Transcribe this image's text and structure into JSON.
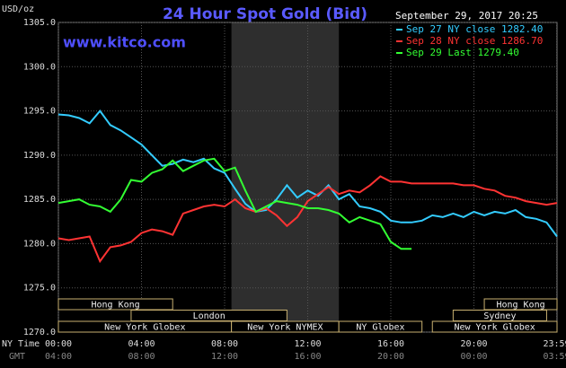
{
  "chart_data": {
    "type": "line",
    "title": "24 Hour Spot Gold (Bid)",
    "y_label": "USD/oz",
    "watermark": "www.kitco.com",
    "timestamp": "September 29, 2017 20:25",
    "x_axis_labels": [
      "NY Time",
      "GMT"
    ],
    "x": [
      0,
      0.5,
      1,
      1.5,
      2,
      2.5,
      3,
      3.5,
      4,
      4.5,
      5,
      5.5,
      6,
      6.5,
      7,
      7.5,
      8,
      8.5,
      9,
      9.5,
      10,
      10.5,
      11,
      11.5,
      12,
      12.5,
      13,
      13.5,
      14,
      14.5,
      15,
      15.5,
      16,
      16.5,
      17,
      17.5,
      18,
      18.5,
      19,
      19.5,
      20,
      20.5,
      21,
      21.5,
      22,
      22.5,
      23,
      23.5,
      24
    ],
    "series": [
      {
        "name": "Sep 27 NY close 1282.40",
        "color": "#33ccff",
        "values": [
          1294.6,
          1294.5,
          1294.2,
          1293.6,
          1295.0,
          1293.4,
          1292.8,
          1292.0,
          1291.2,
          1290.0,
          1288.8,
          1289.0,
          1289.5,
          1289.2,
          1289.6,
          1288.5,
          1288.0,
          1286.2,
          1284.5,
          1283.6,
          1283.8,
          1285.0,
          1286.6,
          1285.2,
          1286.0,
          1285.4,
          1286.6,
          1285.0,
          1285.6,
          1284.2,
          1284.0,
          1283.6,
          1282.6,
          1282.4,
          1282.4,
          1282.6,
          1283.2,
          1283.0,
          1283.4,
          1283.0,
          1283.6,
          1283.2,
          1283.6,
          1283.4,
          1283.8,
          1283.0,
          1282.8,
          1282.4,
          1280.8
        ]
      },
      {
        "name": "Sep 28 NY close 1286.70",
        "color": "#ff3333",
        "values": [
          1280.6,
          1280.4,
          1280.6,
          1280.8,
          1278.0,
          1279.6,
          1279.8,
          1280.2,
          1281.2,
          1281.6,
          1281.4,
          1281.0,
          1283.4,
          1283.8,
          1284.2,
          1284.4,
          1284.2,
          1285.0,
          1284.0,
          1283.6,
          1284.0,
          1283.2,
          1282.0,
          1283.0,
          1284.8,
          1285.6,
          1286.4,
          1285.6,
          1286.0,
          1285.8,
          1286.6,
          1287.6,
          1287.0,
          1287.0,
          1286.8,
          1286.8,
          1286.8,
          1286.8,
          1286.8,
          1286.6,
          1286.6,
          1286.2,
          1286.0,
          1285.4,
          1285.2,
          1284.8,
          1284.6,
          1284.4,
          1284.6
        ]
      },
      {
        "name": "Sep 29 Last 1279.40",
        "color": "#33ff33",
        "values": [
          1284.6,
          1284.8,
          1285.0,
          1284.4,
          1284.2,
          1283.6,
          1285.0,
          1287.2,
          1287.0,
          1288.0,
          1288.4,
          1289.4,
          1288.2,
          1288.8,
          1289.4,
          1289.6,
          1288.2,
          1288.6,
          1286.0,
          1283.6,
          1284.2,
          1284.8,
          1284.6,
          1284.4,
          1284.0,
          1284.0,
          1283.8,
          1283.4,
          1282.4,
          1283.0,
          1282.6,
          1282.2,
          1280.2,
          1279.4,
          1279.4,
          null,
          null,
          null,
          null,
          null,
          null,
          null,
          null,
          null,
          null,
          null,
          null,
          null,
          null
        ]
      }
    ],
    "xlim": [
      0,
      24
    ],
    "xticks": [
      {
        "value": 0,
        "label": "00:00"
      },
      {
        "value": 4,
        "label": "04:00"
      },
      {
        "value": 8,
        "label": "08:00"
      },
      {
        "value": 12,
        "label": "12:00"
      },
      {
        "value": 16,
        "label": "16:00"
      },
      {
        "value": 20,
        "label": "20:00"
      },
      {
        "value": 23.98,
        "label": "23:59"
      }
    ],
    "gmt_tick_labels": [
      "04:00",
      "08:00",
      "12:00",
      "16:00",
      "20:00",
      "00:00",
      "03:59"
    ],
    "ylim": [
      1270,
      1305
    ],
    "yticks": [
      {
        "value": 1270,
        "label": "1270.0"
      },
      {
        "value": 1275,
        "label": "1275.0"
      },
      {
        "value": 1280,
        "label": "1280.0"
      },
      {
        "value": 1285,
        "label": "1285.0"
      },
      {
        "value": 1290,
        "label": "1290.0"
      },
      {
        "value": 1295,
        "label": "1295.0"
      },
      {
        "value": 1300,
        "label": "1300.0"
      },
      {
        "value": 1305,
        "label": "1305.0"
      }
    ],
    "grid": true,
    "sessions": [
      [
        {
          "label": "Hong Kong",
          "start": 0,
          "end": 5.5
        },
        {
          "label": "Hong Kong",
          "start": 20.5,
          "end": 24
        }
      ],
      [
        {
          "label": "London",
          "start": 3.5,
          "end": 11
        },
        {
          "label": "Sydney",
          "start": 19,
          "end": 23.5
        }
      ],
      [
        {
          "label": "New York Globex",
          "start": 0,
          "end": 8.33
        },
        {
          "label": "New York NYMEX",
          "start": 8.33,
          "end": 13.5
        },
        {
          "label": "NY Globex",
          "start": 13.5,
          "end": 17.5
        },
        {
          "label": "New York Globex",
          "start": 18,
          "end": 24
        }
      ]
    ]
  }
}
